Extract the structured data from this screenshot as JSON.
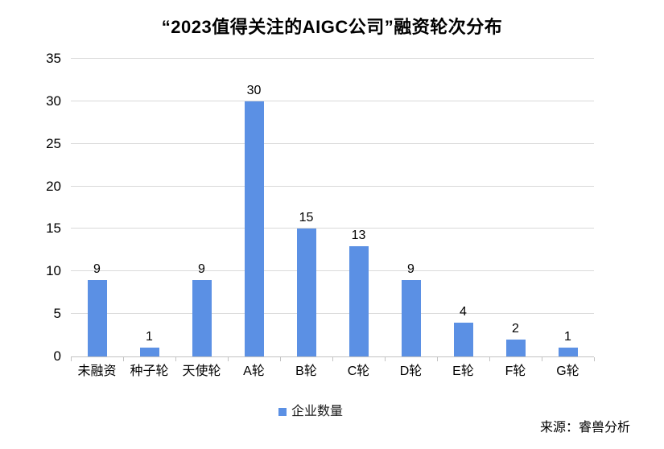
{
  "chart_data": {
    "type": "bar",
    "title": "“2023值得关注的AIGC公司”融资轮次分布",
    "categories": [
      "未融资",
      "种子轮",
      "天使轮",
      "A轮",
      "B轮",
      "C轮",
      "D轮",
      "E轮",
      "F轮",
      "G轮"
    ],
    "values": [
      9,
      1,
      9,
      30,
      15,
      13,
      9,
      4,
      2,
      1
    ],
    "series_name": "企业数量",
    "legend": [
      "企业数量"
    ],
    "xlabel": "",
    "ylabel": "",
    "ylim": [
      0,
      35
    ],
    "ytick_step": 5,
    "grid": true,
    "legend_position": "bottom",
    "data_labels": true,
    "bar_color": "#5b90e4",
    "gridline_color": "#d9d9d9",
    "axis_color": "#c3c3c3"
  },
  "source_note": "来源：睿兽分析"
}
